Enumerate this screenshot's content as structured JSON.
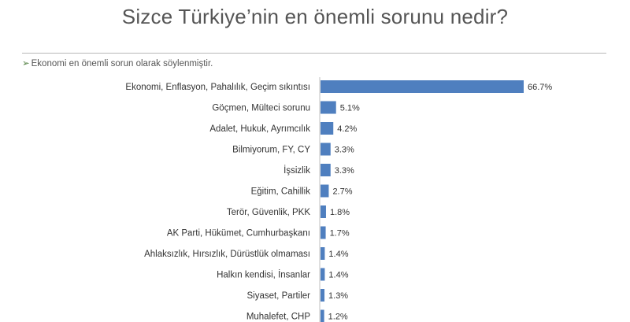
{
  "chart_data": {
    "type": "bar",
    "orientation": "horizontal",
    "title": "Sizce Türkiye’nin en önemli sorunu nedir?",
    "subtitle": "Ekonomi en önemli sorun olarak söylenmiştir.",
    "categories": [
      "Ekonomi, Enflasyon, Pahalılık, Geçim sıkıntısı",
      "Göçmen, Mülteci sorunu",
      "Adalet, Hukuk, Ayrımcılık",
      "Bilmiyorum, FY, CY",
      "İşsizlik",
      "Eğitim, Cahillik",
      "Terör, Güvenlik, PKK",
      "AK Parti, Hükümet, Cumhurbaşkanı",
      "Ahlaksızlık, Hırsızlık, Dürüstlük olmaması",
      "Halkın kendisi, İnsanlar",
      "Siyaset, Partiler",
      "Muhalefet, CHP"
    ],
    "values": [
      66.7,
      5.1,
      4.2,
      3.3,
      3.3,
      2.7,
      1.8,
      1.7,
      1.4,
      1.4,
      1.3,
      1.2
    ],
    "value_labels": [
      "66.7%",
      "5.1%",
      "4.2%",
      "3.3%",
      "3.3%",
      "2.7%",
      "1.8%",
      "1.7%",
      "1.4%",
      "1.4%",
      "1.3%",
      "1.2%"
    ],
    "xlabel": "",
    "ylabel": "",
    "xlim": [
      0,
      66.7
    ],
    "grid": false,
    "bar_color": "#4f7fbf"
  }
}
